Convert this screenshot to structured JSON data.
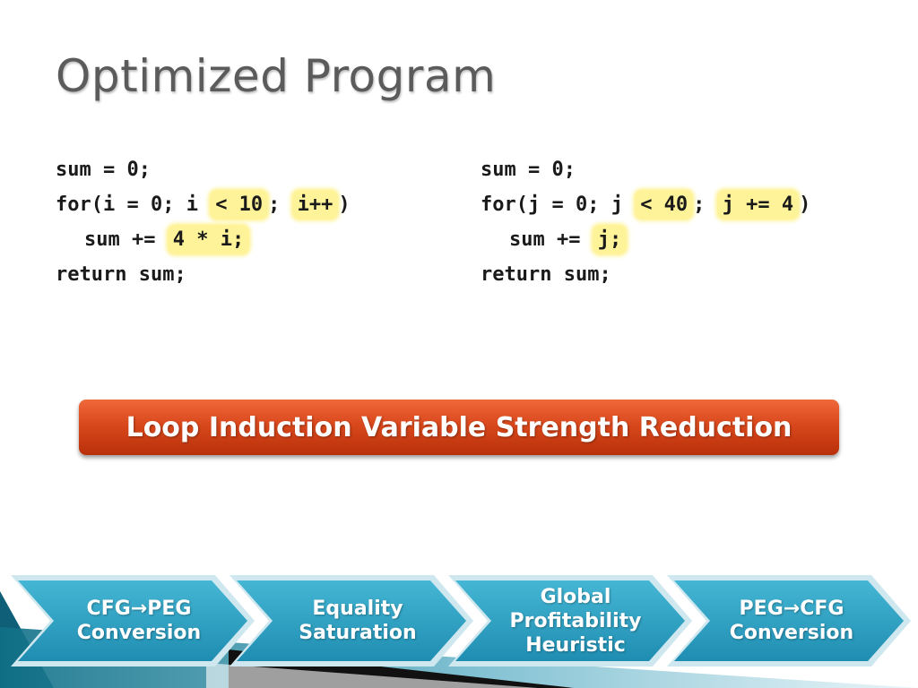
{
  "slide": {
    "title": "Optimized Program"
  },
  "left_code": {
    "line1": "sum = 0;",
    "line2_a": "for(i = 0; i ",
    "line2_b": "< 10",
    "line2_c": "; ",
    "line2_d": "i++",
    "line2_e": ")",
    "line3_a": "sum += ",
    "line3_b": "4 * i;",
    "line4": "return sum;"
  },
  "right_code": {
    "line1": "sum = 0;",
    "line2_a": "for(j = 0; j ",
    "line2_b": "< 40",
    "line2_c": "; ",
    "line2_d": "j += 4",
    "line2_e": ")",
    "line3_a": "sum += ",
    "line3_b": "j;",
    "line4": "return sum;"
  },
  "banner": {
    "label": "Loop Induction Variable Strength Reduction"
  },
  "pipeline": {
    "steps": [
      {
        "line1": "CFG→PEG",
        "line2": "Conversion"
      },
      {
        "line1": "Equality",
        "line2": "Saturation"
      },
      {
        "line1": "Global",
        "line2": "Profitability",
        "line3": "Heuristic"
      },
      {
        "line1": "PEG→CFG",
        "line2": "Conversion"
      }
    ]
  },
  "colors": {
    "highlight": "#fff39a",
    "banner": "#d9481c",
    "chevron": "#2a9cc0",
    "title": "#5b5b5b"
  }
}
